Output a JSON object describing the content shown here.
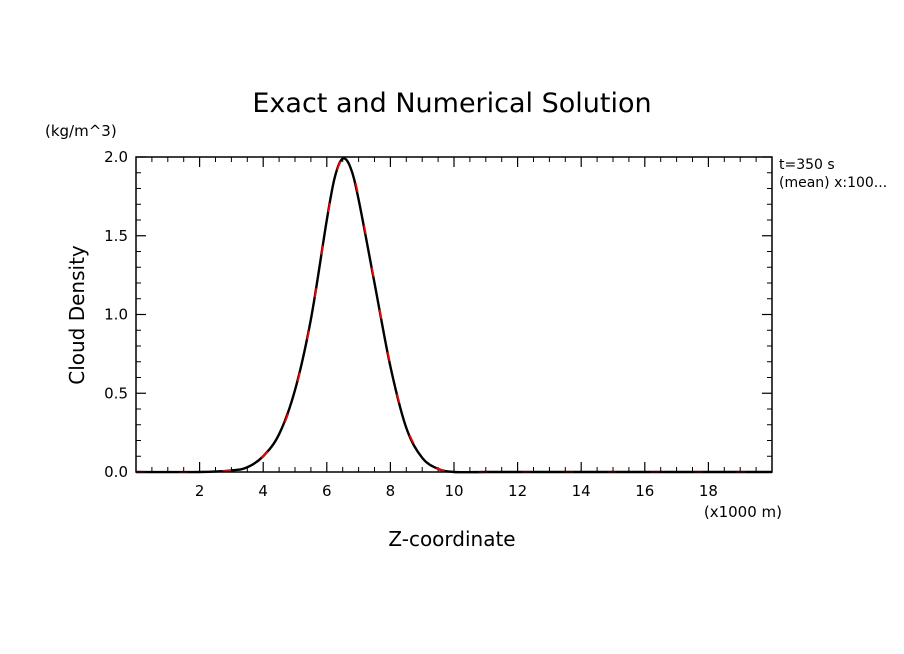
{
  "chart_data": {
    "type": "line",
    "title": "Exact and Numerical Solution",
    "xlabel": "Z-coordinate",
    "ylabel": "Cloud Density",
    "y_unit": "(kg/m^3)",
    "x_unit": "(x1000 m)",
    "annotations": [
      "t=350 s",
      "(mean) x:100..."
    ],
    "xlim": [
      0,
      20
    ],
    "ylim": [
      0.0,
      2.0
    ],
    "xticks": [
      2,
      4,
      6,
      8,
      10,
      12,
      14,
      16,
      18
    ],
    "xtick_labels": [
      "2",
      "4",
      "6",
      "8",
      "10",
      "12",
      "14",
      "16",
      "18"
    ],
    "yticks": [
      0.0,
      0.5,
      1.0,
      1.5,
      2.0
    ],
    "ytick_labels": [
      "0.0",
      "0.5",
      "1.0",
      "1.5",
      "2.0"
    ],
    "grid": false,
    "legend": "none",
    "series": [
      {
        "style": "solid",
        "color": "#000000",
        "x": [
          0,
          2,
          3,
          3.5,
          4,
          4.5,
          5,
          5.5,
          6,
          6.25,
          6.5,
          6.75,
          7,
          7.5,
          8,
          8.5,
          9,
          9.5,
          10,
          11,
          12,
          14,
          16,
          18,
          20
        ],
        "y": [
          0.0,
          0.0,
          0.01,
          0.03,
          0.1,
          0.24,
          0.52,
          0.97,
          1.6,
          1.87,
          1.99,
          1.93,
          1.73,
          1.2,
          0.67,
          0.28,
          0.09,
          0.02,
          0.0,
          0.0,
          0.0,
          0.0,
          0.0,
          0.0,
          0.0
        ]
      },
      {
        "style": "dashed",
        "color": "#ff0000",
        "x": [
          0,
          2,
          3,
          3.5,
          4,
          4.5,
          5,
          5.5,
          6,
          6.25,
          6.5,
          6.75,
          7,
          7.5,
          8,
          8.5,
          9,
          9.5,
          10,
          11,
          12,
          14,
          16,
          18,
          20
        ],
        "y": [
          0.0,
          0.0,
          0.01,
          0.03,
          0.1,
          0.23,
          0.51,
          0.96,
          1.59,
          1.86,
          1.99,
          1.94,
          1.75,
          1.21,
          0.68,
          0.29,
          0.1,
          0.02,
          0.0,
          0.0,
          0.0,
          0.0,
          0.0,
          0.0,
          0.0
        ]
      }
    ]
  }
}
